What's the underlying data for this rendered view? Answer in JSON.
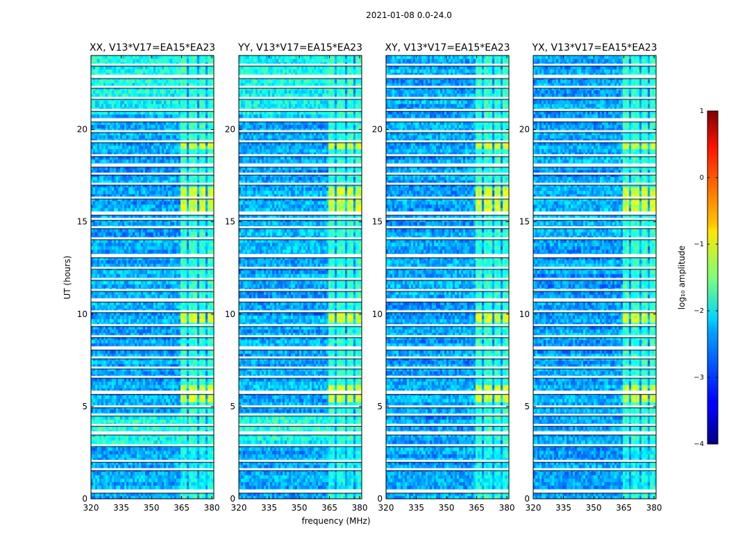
{
  "figure": {
    "suptitle": "2021-01-08 0.0-24.0"
  },
  "chart_data": {
    "type": "heatmap",
    "xlabel": "frequency (MHz)",
    "ylabel": "UT (hours)",
    "xlim": [
      320,
      381
    ],
    "ylim": [
      0,
      24
    ],
    "x_ticks": [
      320,
      335,
      350,
      365,
      380
    ],
    "x_tick_labels": [
      "320",
      "335",
      "350",
      "365",
      "380"
    ],
    "y_ticks": [
      0,
      5,
      10,
      15,
      20
    ],
    "y_tick_labels": [
      "0",
      "5",
      "10",
      "15",
      "20"
    ],
    "panels": [
      {
        "title": "XX, V13*V17=EA15*EA23",
        "pol": "XX",
        "strong_low_band": true
      },
      {
        "title": "YY, V13*V17=EA15*EA23",
        "pol": "YY",
        "strong_low_band": true
      },
      {
        "title": "XY, V13*V17=EA15*EA23",
        "pol": "XY",
        "strong_low_band": false
      },
      {
        "title": "YX, V13*V17=EA15*EA23",
        "pol": "YX",
        "strong_low_band": false
      }
    ],
    "rfi_band_mhz": [
      [
        364,
        368
      ],
      [
        369,
        372.5
      ],
      [
        373.5,
        377
      ],
      [
        378,
        381
      ]
    ],
    "flagged_hours": [
      0.45,
      1.6,
      2.05,
      2.9,
      3.6,
      4.0,
      4.55,
      5.0,
      5.8,
      6.6,
      7.1,
      7.65,
      8.2,
      8.8,
      9.4,
      10.15,
      10.8,
      11.3,
      11.9,
      12.5,
      13.2,
      14.1,
      14.7,
      15.15,
      15.5,
      16.3,
      17.05,
      17.6,
      18.1,
      18.6,
      19.35,
      19.9,
      20.55,
      21.05,
      21.7,
      22.3,
      22.9,
      23.5
    ],
    "bright_bins_hours": [
      [
        5.15,
        6.1
      ],
      [
        9.45,
        10.1
      ],
      [
        15.55,
        16.95
      ],
      [
        18.95,
        19.3
      ]
    ],
    "colorbar": {
      "label": "log₁₀ amplitude",
      "range": [
        -4,
        1
      ],
      "ticks": [
        1,
        0,
        -1,
        -2,
        -3,
        -4
      ],
      "tick_labels": [
        "1",
        "0",
        "−1",
        "−2",
        "−3",
        "−4"
      ],
      "colormap": "jet"
    }
  }
}
